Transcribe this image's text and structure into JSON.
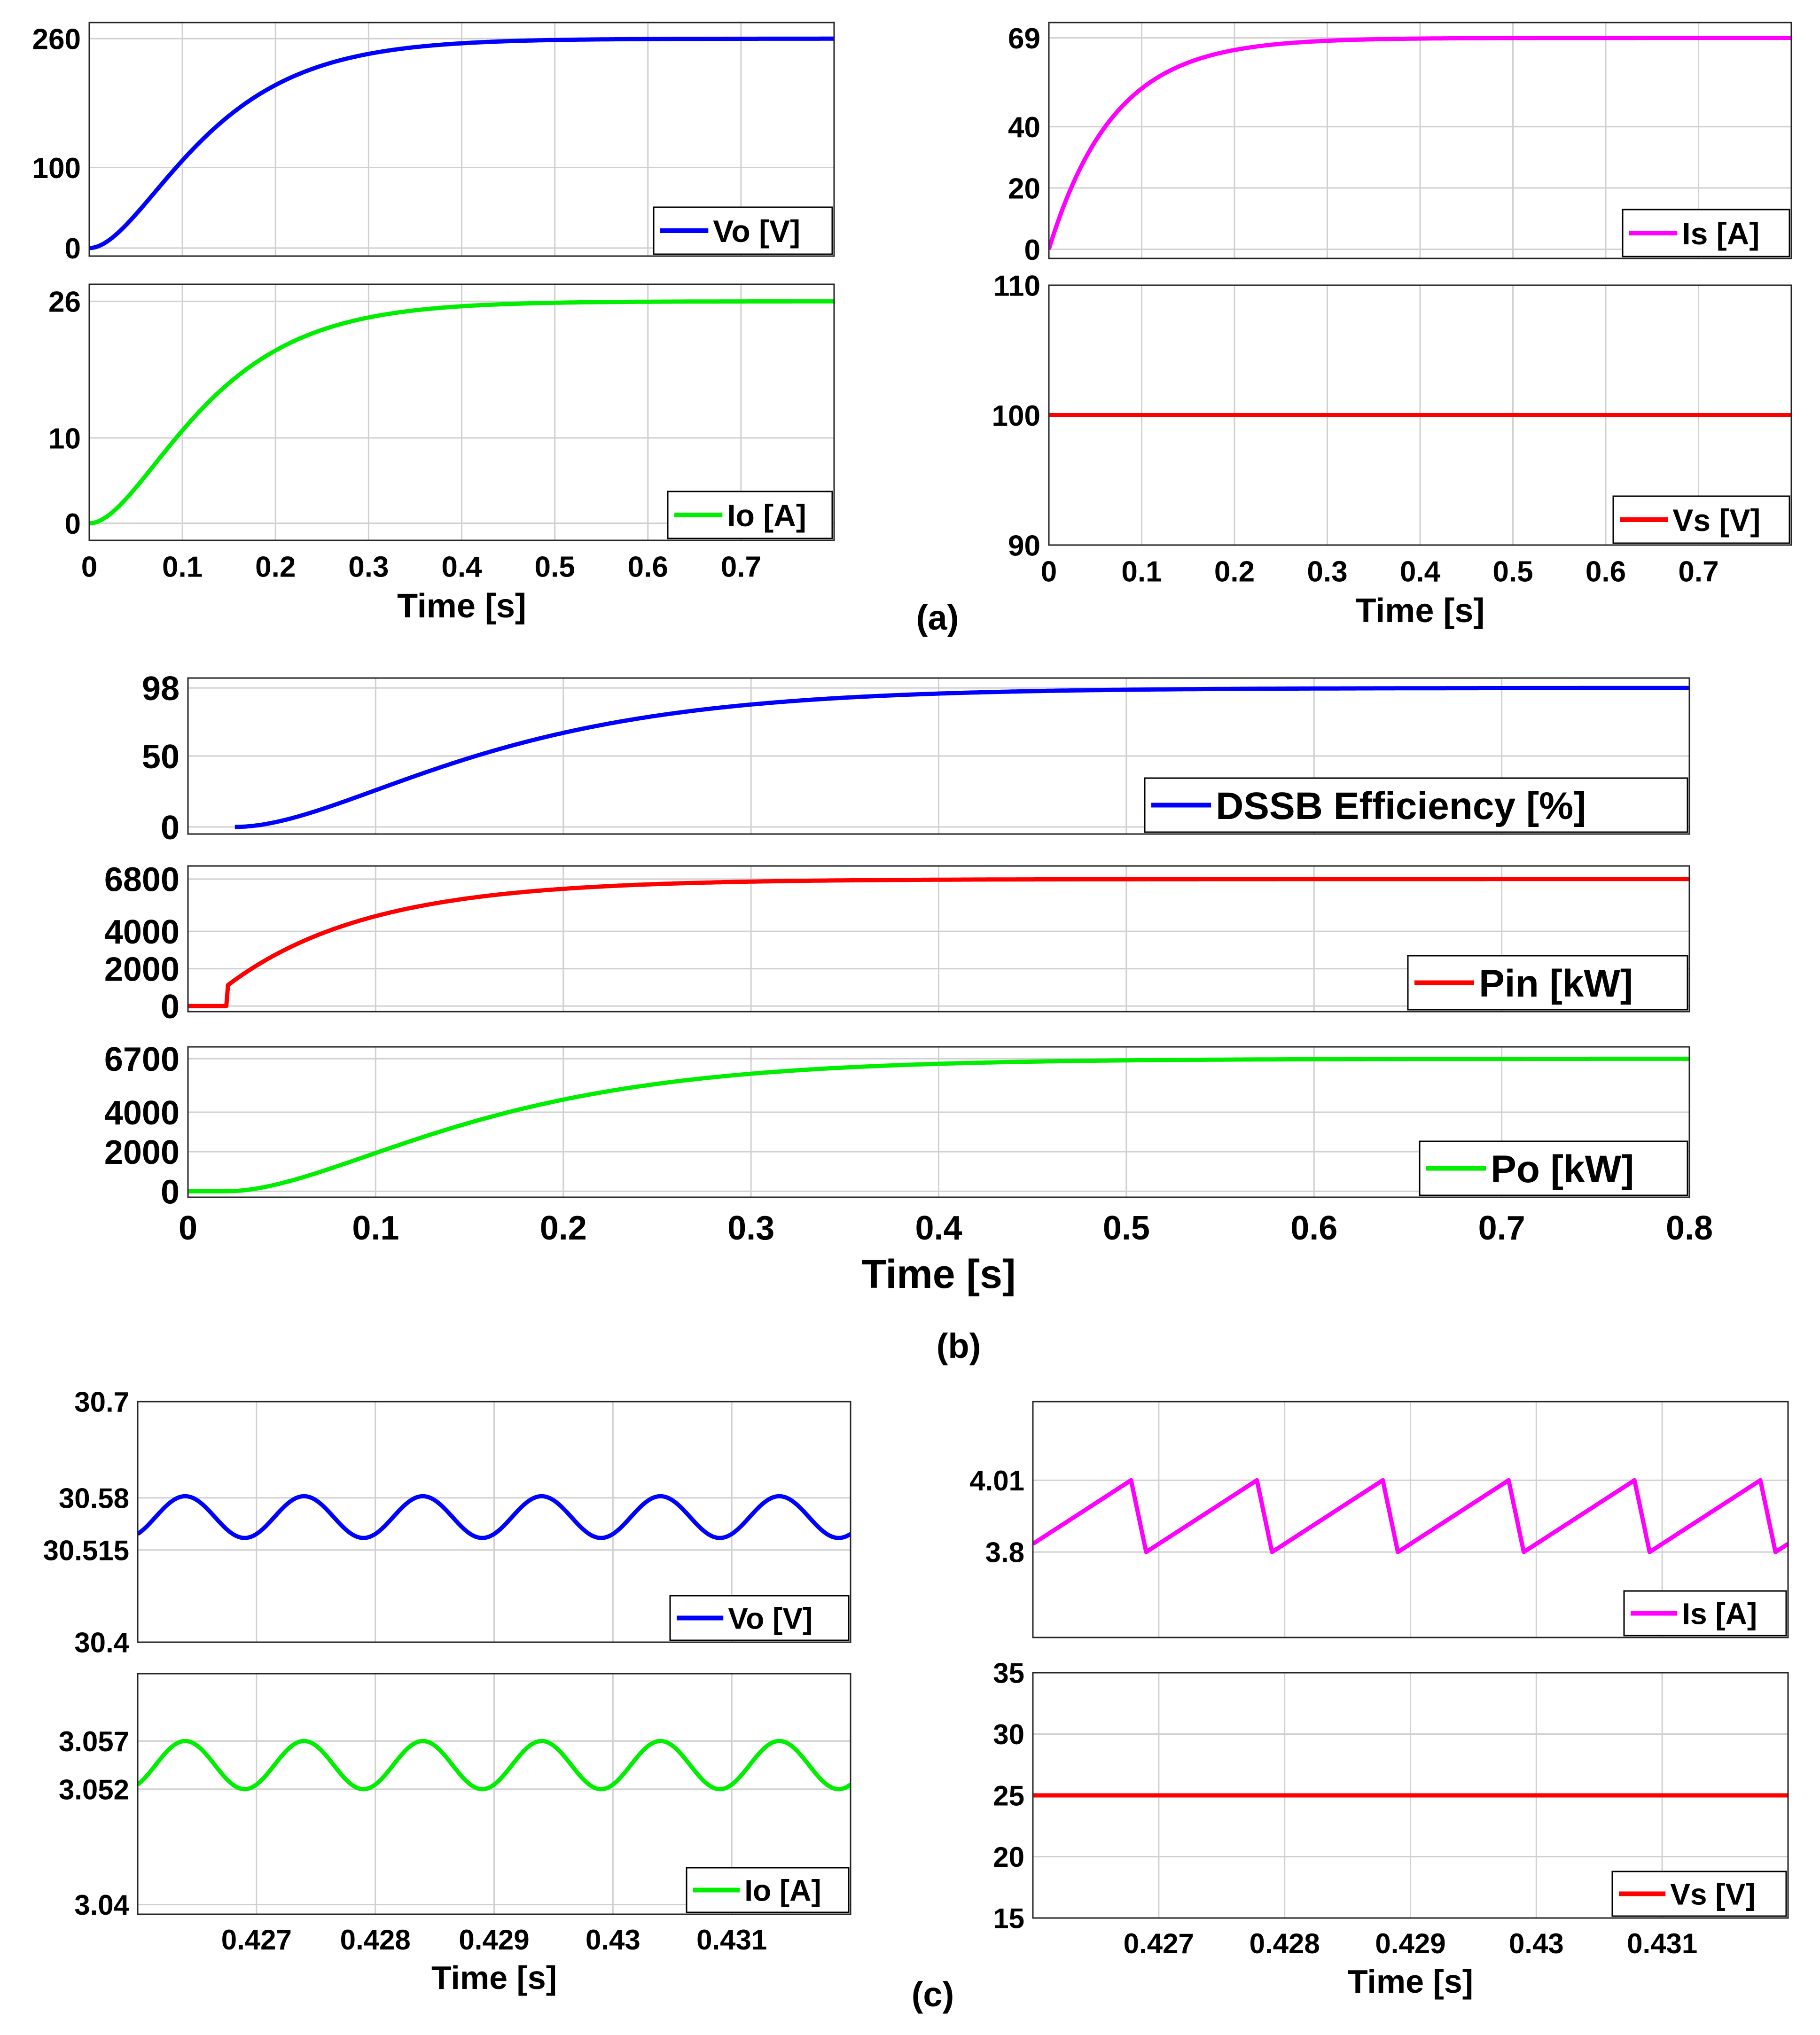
{
  "figure": {
    "captions": [
      "(a)",
      "(b)",
      "(c)"
    ]
  },
  "chart_data": [
    {
      "id": "a-vo",
      "group": "a",
      "type": "line",
      "xlabel": "",
      "ylabel": "",
      "xlim": [
        0,
        0.8
      ],
      "ylim": [
        -10,
        280
      ],
      "xticks": [
        0,
        0.1,
        0.2,
        0.3,
        0.4,
        0.5,
        0.6,
        0.7
      ],
      "xtick_labels": [],
      "yticks": [
        0,
        100,
        260
      ],
      "ytick_labels": [
        "0",
        "100",
        "260"
      ],
      "grid": true,
      "legend_position": "bottom-right",
      "series": [
        {
          "name": "Vo [V]",
          "color": "#0000ff",
          "kind": "exp2",
          "x": [
            0,
            0.8
          ],
          "final": 260,
          "tau": 0.07,
          "start": 0,
          "delay": 0
        }
      ]
    },
    {
      "id": "a-io",
      "group": "a",
      "type": "line",
      "xlabel": "Time [s]",
      "ylabel": "",
      "xlim": [
        0,
        0.8
      ],
      "ylim": [
        -2,
        28
      ],
      "xticks": [
        0,
        0.1,
        0.2,
        0.3,
        0.4,
        0.5,
        0.6,
        0.7
      ],
      "xtick_labels": [
        "0",
        "0.1",
        "0.2",
        "0.3",
        "0.4",
        "0.5",
        "0.6",
        "0.7"
      ],
      "yticks": [
        0,
        10,
        26
      ],
      "ytick_labels": [
        "0",
        "10",
        "26"
      ],
      "grid": true,
      "legend_position": "bottom-right",
      "series": [
        {
          "name": "Io [A]",
          "color": "#00ee00",
          "kind": "exp2",
          "x": [
            0,
            0.8
          ],
          "final": 26,
          "tau": 0.07,
          "start": 0,
          "delay": 0
        }
      ]
    },
    {
      "id": "a-is",
      "group": "a",
      "type": "line",
      "xlabel": "",
      "ylabel": "",
      "xlim": [
        0,
        0.8
      ],
      "ylim": [
        -3,
        74
      ],
      "xticks": [
        0,
        0.1,
        0.2,
        0.3,
        0.4,
        0.5,
        0.6,
        0.7
      ],
      "xtick_labels": [],
      "yticks": [
        0,
        20,
        40,
        69
      ],
      "ytick_labels": [
        "0",
        "20",
        "40",
        "69"
      ],
      "grid": true,
      "legend_position": "bottom-right",
      "series": [
        {
          "name": "Is [A]",
          "color": "#ff00ff",
          "kind": "exp1",
          "x": [
            0,
            0.8
          ],
          "final": 69,
          "tau": 0.07,
          "start": 0,
          "delay": 0
        }
      ]
    },
    {
      "id": "a-vs",
      "group": "a",
      "type": "line",
      "xlabel": "Time [s]",
      "ylabel": "",
      "xlim": [
        0,
        0.8
      ],
      "ylim": [
        90,
        110
      ],
      "xticks": [
        0,
        0.1,
        0.2,
        0.3,
        0.4,
        0.5,
        0.6,
        0.7
      ],
      "xtick_labels": [
        "0",
        "0.1",
        "0.2",
        "0.3",
        "0.4",
        "0.5",
        "0.6",
        "0.7"
      ],
      "yticks": [
        90,
        100,
        110
      ],
      "ytick_labels": [
        "90",
        "100",
        "110"
      ],
      "grid": true,
      "legend_position": "bottom-right",
      "series": [
        {
          "name": "Vs [V]",
          "color": "#ff0000",
          "kind": "const",
          "x": [
            0,
            0.8
          ],
          "value": 100
        }
      ]
    },
    {
      "id": "b-eff",
      "group": "b",
      "type": "line",
      "xlabel": "",
      "ylabel": "",
      "xlim": [
        0,
        0.8
      ],
      "ylim": [
        -5,
        105
      ],
      "xticks": [
        0,
        0.1,
        0.2,
        0.3,
        0.4,
        0.5,
        0.6,
        0.7,
        0.8
      ],
      "xtick_labels": [],
      "yticks": [
        0,
        50,
        98
      ],
      "ytick_labels": [
        "0",
        "50",
        "98"
      ],
      "grid": true,
      "legend_position": "bottom-right",
      "series": [
        {
          "name": "DSSB Efficiency [%]",
          "color": "#0000ff",
          "kind": "exp2",
          "x": [
            0.025,
            0.8
          ],
          "final": 98,
          "tau": 0.075,
          "start": 0,
          "delay": 0.025
        }
      ]
    },
    {
      "id": "b-pin",
      "group": "b",
      "type": "line",
      "xlabel": "",
      "ylabel": "",
      "xlim": [
        0,
        0.8
      ],
      "ylim": [
        -300,
        7500
      ],
      "xticks": [
        0,
        0.1,
        0.2,
        0.3,
        0.4,
        0.5,
        0.6,
        0.7,
        0.8
      ],
      "xtick_labels": [],
      "yticks": [
        0,
        2000,
        4000,
        6800
      ],
      "ytick_labels": [
        "0",
        "2000",
        "4000",
        "6800"
      ],
      "grid": true,
      "legend_position": "bottom-right",
      "series": [
        {
          "name": "Pin [kW]",
          "color": "#ff0000",
          "kind": "step-exp",
          "x": [
            0,
            0.8
          ],
          "final": 6800,
          "tau": 0.075,
          "start": 0,
          "jump": 1100,
          "delay": 0.021
        }
      ]
    },
    {
      "id": "b-po",
      "group": "b",
      "type": "line",
      "xlabel": "Time [s]",
      "ylabel": "",
      "xlim": [
        0,
        0.8
      ],
      "ylim": [
        -300,
        7300
      ],
      "xticks": [
        0,
        0.1,
        0.2,
        0.3,
        0.4,
        0.5,
        0.6,
        0.7,
        0.8
      ],
      "xtick_labels": [
        "0",
        "0.1",
        "0.2",
        "0.3",
        "0.4",
        "0.5",
        "0.6",
        "0.7",
        "0.8"
      ],
      "yticks": [
        0,
        2000,
        4000,
        6700
      ],
      "ytick_labels": [
        "0",
        "2000",
        "4000",
        "6700"
      ],
      "grid": true,
      "legend_position": "bottom-right",
      "series": [
        {
          "name": "Po [kW]",
          "color": "#00ee00",
          "kind": "exp2",
          "x": [
            0,
            0.8
          ],
          "final": 6700,
          "tau": 0.075,
          "start": 0,
          "delay": 0.02
        }
      ]
    },
    {
      "id": "c-vo",
      "group": "c",
      "type": "line",
      "xlabel": "",
      "ylabel": "",
      "xlim": [
        0.426,
        0.432
      ],
      "ylim": [
        30.4,
        30.7
      ],
      "xticks": [
        0.427,
        0.428,
        0.429,
        0.43,
        0.431
      ],
      "xtick_labels": [],
      "yticks": [
        30.4,
        30.515,
        30.58,
        30.7
      ],
      "ytick_labels": [
        "30.4",
        "30.515",
        "30.58",
        "30.7"
      ],
      "grid": true,
      "legend_position": "bottom-right",
      "series": [
        {
          "name": "Vo [V]",
          "color": "#0000ff",
          "kind": "sine",
          "x": [
            0.426,
            0.432
          ],
          "min": 30.53,
          "max": 30.582,
          "period": 0.001,
          "trough": 0.4269
        }
      ]
    },
    {
      "id": "c-io",
      "group": "c",
      "type": "line",
      "xlabel": "Time [s]",
      "ylabel": "",
      "xlim": [
        0.426,
        0.432
      ],
      "ylim": [
        3.039,
        3.064
      ],
      "xticks": [
        0.427,
        0.428,
        0.429,
        0.43,
        0.431
      ],
      "xtick_labels": [
        "0.427",
        "0.428",
        "0.429",
        "0.43",
        "0.431"
      ],
      "yticks": [
        3.04,
        3.052,
        3.057
      ],
      "ytick_labels": [
        "3.04",
        "3.052",
        "3.057"
      ],
      "grid": true,
      "legend_position": "bottom-right",
      "series": [
        {
          "name": "Io [A]",
          "color": "#00ee00",
          "kind": "sine",
          "x": [
            0.426,
            0.432
          ],
          "min": 3.052,
          "max": 3.057,
          "period": 0.001,
          "trough": 0.4269
        }
      ]
    },
    {
      "id": "c-is",
      "group": "c",
      "type": "line",
      "xlabel": "",
      "ylabel": "",
      "xlim": [
        0.426,
        0.432
      ],
      "ylim": [
        3.55,
        4.24
      ],
      "xticks": [
        0.427,
        0.428,
        0.429,
        0.43,
        0.431
      ],
      "xtick_labels": [],
      "yticks": [
        3.8,
        4.01
      ],
      "ytick_labels": [
        "3.8",
        "4.01"
      ],
      "grid": true,
      "legend_position": "bottom-right",
      "series": [
        {
          "name": "Is [A]",
          "color": "#ff00ff",
          "kind": "sawtooth",
          "x": [
            0.426,
            0.432
          ],
          "min": 3.8,
          "max": 4.01,
          "period": 0.001,
          "trough": 0.4269,
          "fall": 0.12
        }
      ]
    },
    {
      "id": "c-vs",
      "group": "c",
      "type": "line",
      "xlabel": "Time [s]",
      "ylabel": "",
      "xlim": [
        0.426,
        0.432
      ],
      "ylim": [
        15,
        35
      ],
      "xticks": [
        0.427,
        0.428,
        0.429,
        0.43,
        0.431
      ],
      "xtick_labels": [
        "0.427",
        "0.428",
        "0.429",
        "0.43",
        "0.431"
      ],
      "yticks": [
        15,
        20,
        25,
        30,
        35
      ],
      "ytick_labels": [
        "15",
        "20",
        "25",
        "30",
        "35"
      ],
      "grid": true,
      "legend_position": "bottom-right",
      "series": [
        {
          "name": "Vs [V]",
          "color": "#ff0000",
          "kind": "const",
          "x": [
            0.426,
            0.432
          ],
          "value": 25
        }
      ]
    }
  ]
}
